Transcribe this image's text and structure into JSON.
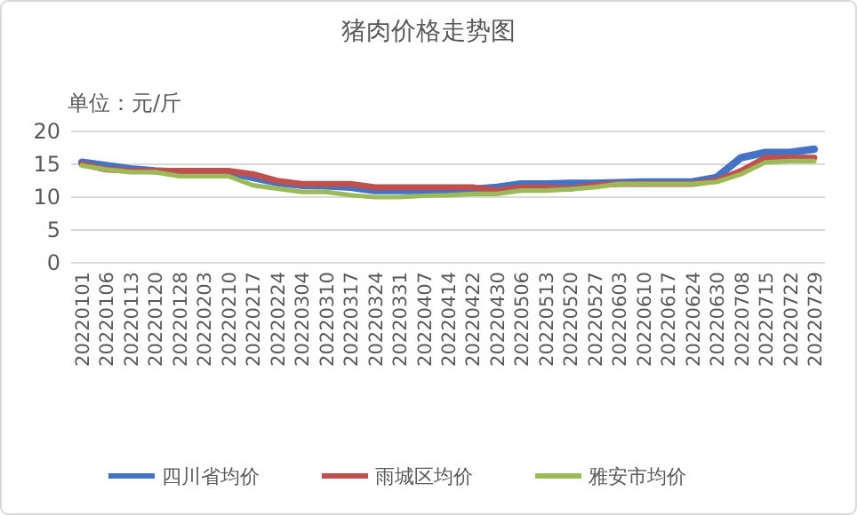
{
  "chart_data": {
    "type": "line",
    "title": "猪肉价格走势图",
    "ylabel": "单位：元/斤",
    "categories": [
      "20220101",
      "20220106",
      "20220113",
      "20220120",
      "20220128",
      "20220203",
      "20220210",
      "20220217",
      "20220224",
      "20220304",
      "20220310",
      "20220317",
      "20220324",
      "20220331",
      "20220407",
      "20220414",
      "20220422",
      "20220430",
      "20220506",
      "20220513",
      "20220520",
      "20220527",
      "20220603",
      "20220610",
      "20220617",
      "20220624",
      "20220630",
      "20220708",
      "20220715",
      "20220722",
      "20220729"
    ],
    "series": [
      {
        "name": "四川省均价",
        "color": "#4472c4",
        "values": [
          15.3,
          14.8,
          14.3,
          14.0,
          13.8,
          13.8,
          13.8,
          13.0,
          12.2,
          11.8,
          11.7,
          11.5,
          11.0,
          11.0,
          11.0,
          11.0,
          11.2,
          11.5,
          12.0,
          12.0,
          12.1,
          12.1,
          12.2,
          12.3,
          12.3,
          12.3,
          13.0,
          16.0,
          16.8,
          16.8,
          17.3
        ]
      },
      {
        "name": "雨城区均价",
        "color": "#c0504d",
        "values": [
          15.0,
          14.2,
          14.0,
          14.0,
          14.0,
          14.0,
          14.0,
          13.5,
          12.5,
          12.0,
          12.0,
          12.0,
          11.5,
          11.5,
          11.5,
          11.5,
          11.5,
          11.0,
          11.5,
          11.5,
          11.3,
          11.8,
          12.0,
          12.0,
          12.0,
          12.0,
          12.5,
          14.0,
          16.0,
          16.0,
          16.0
        ]
      },
      {
        "name": "雅安市均价",
        "color": "#9bbb59",
        "values": [
          14.8,
          14.2,
          13.8,
          13.8,
          13.2,
          13.2,
          13.2,
          11.8,
          11.3,
          10.8,
          10.8,
          10.3,
          10.0,
          10.0,
          10.2,
          10.3,
          10.5,
          10.5,
          11.0,
          11.0,
          11.2,
          11.5,
          12.0,
          12.0,
          12.0,
          12.0,
          12.3,
          13.5,
          15.3,
          15.5,
          15.5
        ]
      }
    ],
    "ylim": [
      0,
      20
    ],
    "yticks": [
      0,
      5,
      10,
      15,
      20
    ],
    "grid": "y",
    "legend": "bottom",
    "marker": "none",
    "line_style": "solid"
  }
}
